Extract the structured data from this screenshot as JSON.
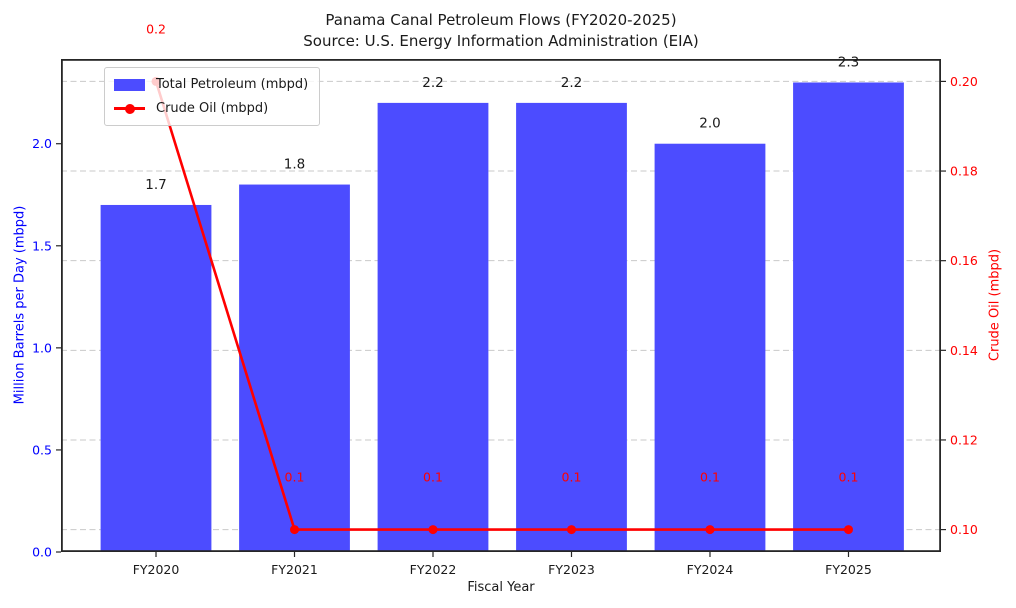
{
  "legend": {
    "items": [
      {
        "label": "Total Petroleum (mbpd)",
        "color": "#4c4cff",
        "marker": "patch"
      },
      {
        "label": "Crude Oil (mbpd)",
        "color": "#ff0000",
        "marker": "line-dot"
      }
    ]
  },
  "chart_data": {
    "type": "bar",
    "title": "Panama Canal Petroleum Flows (FY2020-2025)",
    "subtitle": "Source: U.S. Energy Information Administration (EIA)",
    "xlabel": "Fiscal Year",
    "ylabel_left": "Million Barrels per Day (mbpd)",
    "ylabel_right": "Crude Oil (mbpd)",
    "categories": [
      "FY2020",
      "FY2021",
      "FY2022",
      "FY2023",
      "FY2024",
      "FY2025"
    ],
    "series": [
      {
        "name": "Total Petroleum (mbpd)",
        "type": "bar",
        "axis": "left",
        "color": "#4c4cff",
        "values": [
          1.7,
          1.8,
          2.2,
          2.2,
          2.0,
          2.3
        ],
        "labels": [
          "1.7",
          "1.8",
          "2.2",
          "2.2",
          "2.0",
          "2.3"
        ]
      },
      {
        "name": "Crude Oil (mbpd)",
        "type": "line",
        "axis": "right",
        "color": "#ff0000",
        "values": [
          0.2,
          0.1,
          0.1,
          0.1,
          0.1,
          0.1
        ],
        "labels": [
          "0.2",
          "0.1",
          "0.1",
          "0.1",
          "0.1",
          "0.1"
        ]
      }
    ],
    "xlim": [
      -0.686,
      5.668
    ],
    "ylim_left": [
      0,
      2.415
    ],
    "ylim_right": [
      0.095,
      0.205
    ],
    "bar_width": 0.8,
    "yticks_left": {
      "values": [
        0,
        0.5,
        1.0,
        1.5,
        2.0
      ],
      "labels": [
        "0.0",
        "0.5",
        "1.0",
        "1.5",
        "2.0"
      ]
    },
    "yticks_right": {
      "values": [
        0.1,
        0.12,
        0.14,
        0.16,
        0.18,
        0.2
      ],
      "labels": [
        "0.10",
        "0.12",
        "0.14",
        "0.16",
        "0.18",
        "0.20"
      ]
    },
    "grid": "horizontal-dashed-at-right-ticks",
    "legend_position": "upper-left",
    "colors": {
      "bar": "#4c4cff",
      "line": "#ff0000",
      "left_axis": "#0000ff",
      "right_axis": "#ff0000",
      "grid": "#c9c9c9",
      "spine": "#262626",
      "text": "#1a1a1a"
    }
  }
}
